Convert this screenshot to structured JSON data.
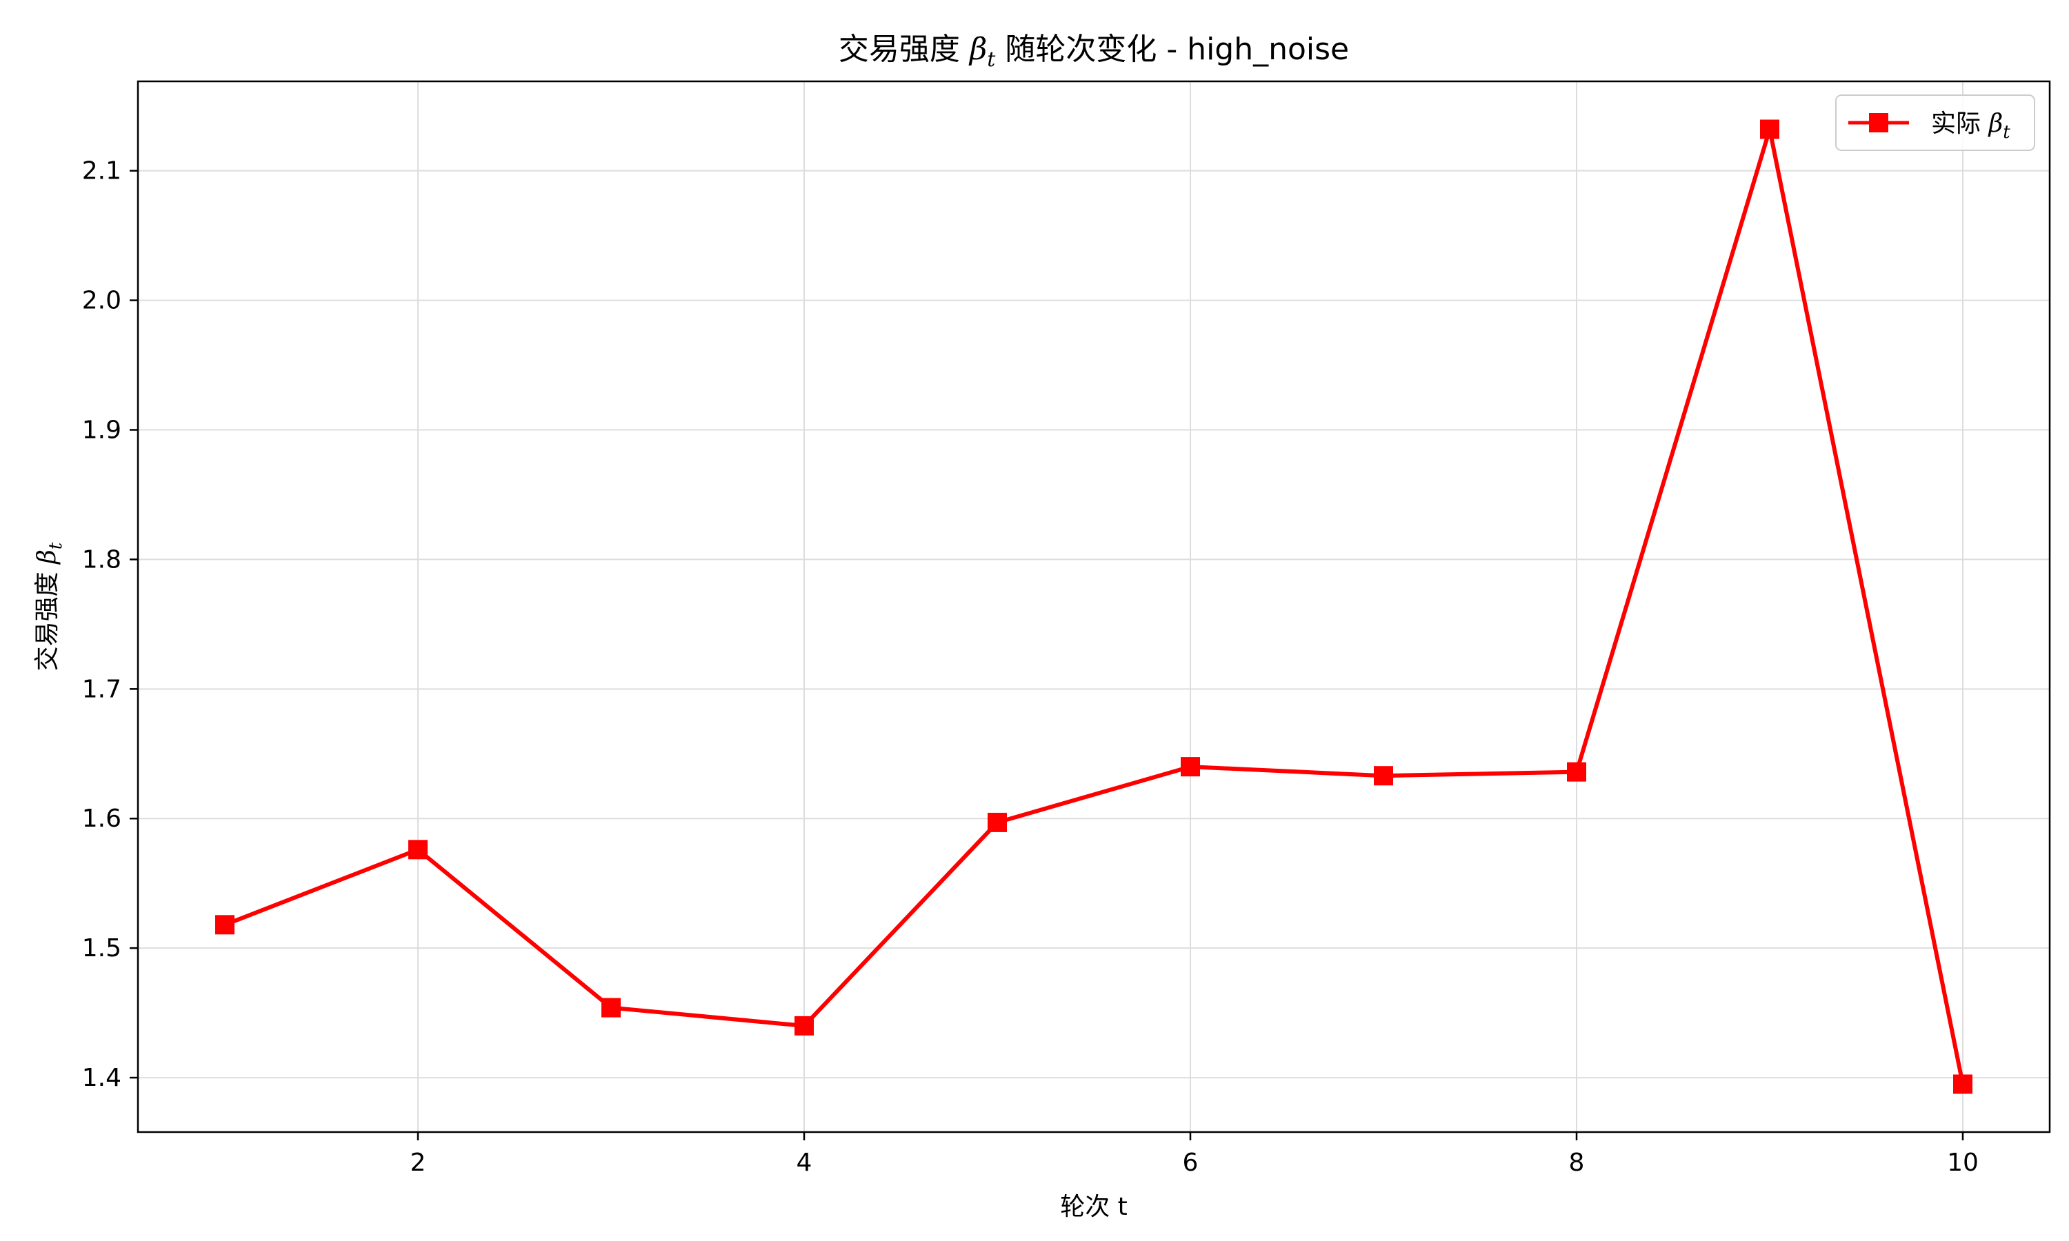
{
  "chart_data": {
    "type": "line",
    "title": {
      "prefix": "交易强度 ",
      "math": "β",
      "math_sub": "t",
      "suffix": " 随轮次变化 - high_noise"
    },
    "xlabel": "轮次 t",
    "ylabel": {
      "prefix": "交易强度 ",
      "math": "β",
      "math_sub": "t"
    },
    "x": [
      1,
      2,
      3,
      4,
      5,
      6,
      7,
      8,
      9,
      10
    ],
    "series": [
      {
        "name": {
          "prefix": "实际 ",
          "math": "β",
          "math_sub": "t"
        },
        "color": "#ff0000",
        "marker": "square",
        "values": [
          1.518,
          1.576,
          1.454,
          1.44,
          1.597,
          1.64,
          1.633,
          1.636,
          2.132,
          1.395
        ]
      }
    ],
    "xlim": [
      0.55,
      10.45
    ],
    "ylim": [
      1.358,
      2.169
    ],
    "xticks": [
      2,
      4,
      6,
      8,
      10
    ],
    "yticks": [
      1.4,
      1.5,
      1.6,
      1.7,
      1.8,
      1.9,
      2.0,
      2.1
    ],
    "ytick_format": "1",
    "grid": true,
    "legend_position": "top-right"
  }
}
